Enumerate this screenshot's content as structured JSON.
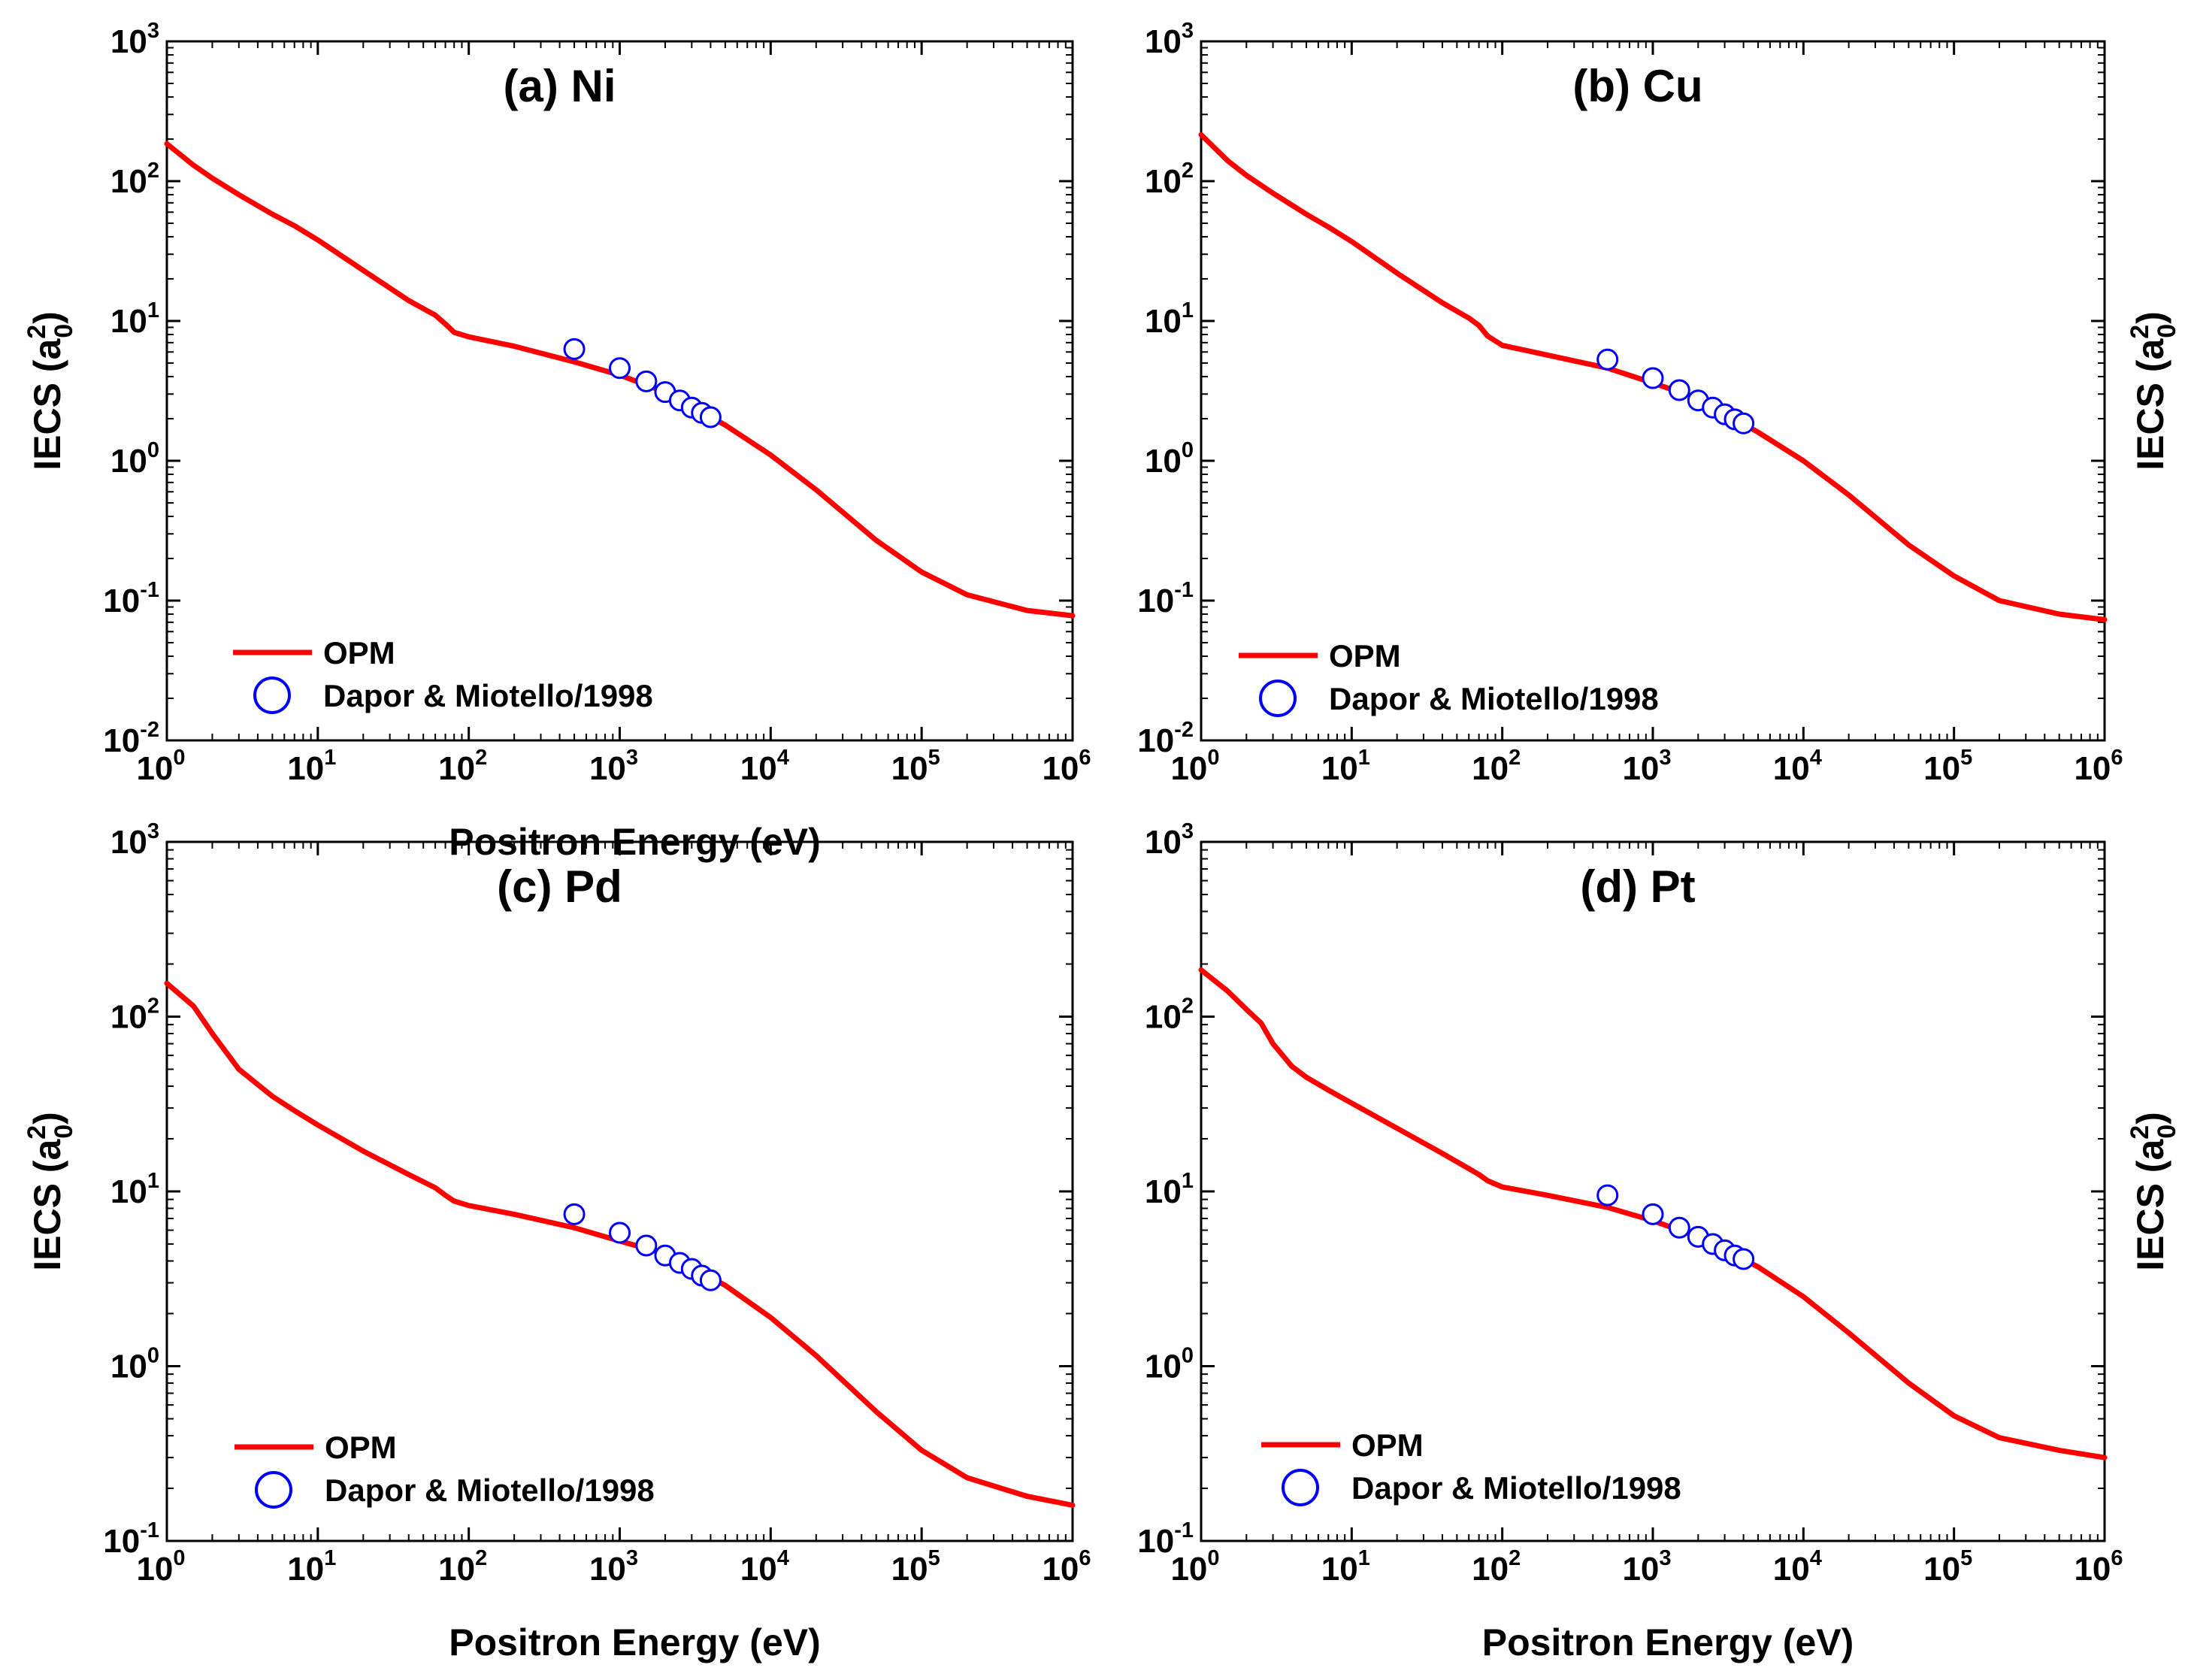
{
  "colors": {
    "line": "#ff0000",
    "marker": "#0000ff",
    "axis": "#000000"
  },
  "chart_data": [
    {
      "type": "line",
      "panel": "a",
      "title": "(a) Ni",
      "xlabel": "Positron Energy (eV)",
      "ylabel": {
        "main": "IECS (a",
        "sup": "2",
        "sub": "0",
        "close": ")"
      },
      "xscale": "log",
      "yscale": "log",
      "xlim": [
        1,
        1000000
      ],
      "ylim": [
        0.01,
        1000
      ],
      "xticks": [
        {
          "base": "10",
          "exp": "0"
        },
        {
          "base": "10",
          "exp": "1"
        },
        {
          "base": "10",
          "exp": "2"
        },
        {
          "base": "10",
          "exp": "3"
        },
        {
          "base": "10",
          "exp": "4"
        },
        {
          "base": "10",
          "exp": "5"
        },
        {
          "base": "10",
          "exp": "6"
        }
      ],
      "yticks": [
        {
          "base": "10",
          "exp": "-2"
        },
        {
          "base": "10",
          "exp": "-1"
        },
        {
          "base": "10",
          "exp": "0"
        },
        {
          "base": "10",
          "exp": "1"
        },
        {
          "base": "10",
          "exp": "2"
        },
        {
          "base": "10",
          "exp": "3"
        }
      ],
      "legend_position": "bottom-left",
      "series": [
        {
          "name": "OPM",
          "kind": "line",
          "x": [
            1,
            1.5,
            2,
            3,
            5,
            7,
            10,
            20,
            40,
            60,
            70,
            80,
            100,
            200,
            500,
            1000,
            2000,
            5000,
            10000,
            20000,
            50000,
            100000,
            200000,
            500000,
            1000000
          ],
          "y": [
            185,
            130,
            105,
            80,
            58,
            48,
            38,
            23,
            14,
            11,
            9.5,
            8.3,
            7.7,
            6.6,
            5.1,
            4.1,
            3.1,
            1.8,
            1.1,
            0.62,
            0.27,
            0.16,
            0.11,
            0.085,
            0.078
          ]
        },
        {
          "name": "Dapor & Miotello/1998",
          "kind": "scatter",
          "x": [
            500,
            1000,
            1500,
            2000,
            2500,
            3000,
            3500,
            4000
          ],
          "y": [
            6.3,
            4.6,
            3.7,
            3.1,
            2.7,
            2.4,
            2.2,
            2.05
          ]
        }
      ]
    },
    {
      "type": "line",
      "panel": "b",
      "title": "(b) Cu",
      "xlabel": "",
      "ylabel": {
        "main": "IECS (a",
        "sup": "2",
        "sub": "0",
        "close": ")"
      },
      "xscale": "log",
      "yscale": "log",
      "xlim": [
        1,
        1000000
      ],
      "ylim": [
        0.01,
        1000
      ],
      "xticks": [
        {
          "base": "10",
          "exp": "0"
        },
        {
          "base": "10",
          "exp": "1"
        },
        {
          "base": "10",
          "exp": "2"
        },
        {
          "base": "10",
          "exp": "3"
        },
        {
          "base": "10",
          "exp": "4"
        },
        {
          "base": "10",
          "exp": "5"
        },
        {
          "base": "10",
          "exp": "6"
        }
      ],
      "yticks": [
        {
          "base": "10",
          "exp": "-2"
        },
        {
          "base": "10",
          "exp": "-1"
        },
        {
          "base": "10",
          "exp": "0"
        },
        {
          "base": "10",
          "exp": "1"
        },
        {
          "base": "10",
          "exp": "2"
        },
        {
          "base": "10",
          "exp": "3"
        }
      ],
      "legend_position": "bottom-left",
      "series": [
        {
          "name": "OPM",
          "kind": "line",
          "x": [
            1,
            1.5,
            2,
            3,
            5,
            7,
            10,
            20,
            40,
            60,
            70,
            80,
            100,
            200,
            500,
            1000,
            2000,
            5000,
            10000,
            20000,
            50000,
            100000,
            200000,
            500000,
            1000000
          ],
          "y": [
            215,
            140,
            110,
            82,
            58,
            47,
            37,
            22,
            13.5,
            10.5,
            9.3,
            7.8,
            6.7,
            5.7,
            4.6,
            3.6,
            2.8,
            1.6,
            1.0,
            0.57,
            0.25,
            0.15,
            0.1,
            0.08,
            0.073
          ]
        },
        {
          "name": "Dapor & Miotello/1998",
          "kind": "scatter",
          "x": [
            500,
            1000,
            1500,
            2000,
            2500,
            3000,
            3500,
            4000
          ],
          "y": [
            5.3,
            3.9,
            3.2,
            2.7,
            2.4,
            2.15,
            1.98,
            1.85
          ]
        }
      ]
    },
    {
      "type": "line",
      "panel": "c",
      "title": "(c) Pd",
      "xlabel": "Positron Energy (eV)",
      "ylabel": {
        "main": "IECS (a",
        "sup": "2",
        "sub": "0",
        "close": ")"
      },
      "xscale": "log",
      "yscale": "log",
      "xlim": [
        1,
        1000000
      ],
      "ylim": [
        0.1,
        1000
      ],
      "xticks": [
        {
          "base": "10",
          "exp": "0"
        },
        {
          "base": "10",
          "exp": "1"
        },
        {
          "base": "10",
          "exp": "2"
        },
        {
          "base": "10",
          "exp": "3"
        },
        {
          "base": "10",
          "exp": "4"
        },
        {
          "base": "10",
          "exp": "5"
        },
        {
          "base": "10",
          "exp": "6"
        }
      ],
      "yticks": [
        {
          "base": "10",
          "exp": "-1"
        },
        {
          "base": "10",
          "exp": "0"
        },
        {
          "base": "10",
          "exp": "1"
        },
        {
          "base": "10",
          "exp": "2"
        },
        {
          "base": "10",
          "exp": "3"
        }
      ],
      "legend_position": "bottom-left",
      "series": [
        {
          "name": "OPM",
          "kind": "line",
          "x": [
            1,
            1.5,
            2,
            3,
            5,
            7,
            10,
            20,
            40,
            60,
            70,
            80,
            100,
            200,
            500,
            1000,
            2000,
            5000,
            10000,
            20000,
            50000,
            100000,
            200000,
            500000,
            1000000
          ],
          "y": [
            155,
            115,
            80,
            50,
            35,
            29,
            24,
            17,
            12.5,
            10.5,
            9.5,
            8.8,
            8.3,
            7.4,
            6.2,
            5.2,
            4.4,
            2.9,
            1.9,
            1.15,
            0.55,
            0.33,
            0.23,
            0.18,
            0.16
          ]
        },
        {
          "name": "Dapor & Miotello/1998",
          "kind": "scatter",
          "x": [
            500,
            1000,
            1500,
            2000,
            2500,
            3000,
            3500,
            4000
          ],
          "y": [
            7.4,
            5.8,
            4.9,
            4.3,
            3.9,
            3.6,
            3.3,
            3.1
          ]
        }
      ]
    },
    {
      "type": "line",
      "panel": "d",
      "title": "(d) Pt",
      "xlabel": "Positron Energy (eV)",
      "ylabel": {
        "main": "IECS (a",
        "sup": "2",
        "sub": "0",
        "close": ")"
      },
      "xscale": "log",
      "yscale": "log",
      "xlim": [
        1,
        1000000
      ],
      "ylim": [
        0.1,
        1000
      ],
      "xticks": [
        {
          "base": "10",
          "exp": "0"
        },
        {
          "base": "10",
          "exp": "1"
        },
        {
          "base": "10",
          "exp": "2"
        },
        {
          "base": "10",
          "exp": "3"
        },
        {
          "base": "10",
          "exp": "4"
        },
        {
          "base": "10",
          "exp": "5"
        },
        {
          "base": "10",
          "exp": "6"
        }
      ],
      "yticks": [
        {
          "base": "10",
          "exp": "-1"
        },
        {
          "base": "10",
          "exp": "0"
        },
        {
          "base": "10",
          "exp": "1"
        },
        {
          "base": "10",
          "exp": "2"
        },
        {
          "base": "10",
          "exp": "3"
        }
      ],
      "legend_position": "bottom-left",
      "series": [
        {
          "name": "OPM",
          "kind": "line",
          "x": [
            1,
            1.5,
            2,
            2.5,
            3,
            4,
            5,
            7,
            10,
            20,
            40,
            60,
            70,
            80,
            100,
            200,
            500,
            1000,
            2000,
            5000,
            10000,
            20000,
            50000,
            100000,
            200000,
            500000,
            1000000
          ],
          "y": [
            185,
            140,
            110,
            92,
            70,
            52,
            45,
            38,
            32,
            23,
            16.5,
            13.5,
            12.5,
            11.5,
            10.6,
            9.5,
            8.1,
            6.8,
            5.5,
            3.7,
            2.5,
            1.55,
            0.8,
            0.52,
            0.39,
            0.33,
            0.3
          ]
        },
        {
          "name": "Dapor & Miotello/1998",
          "kind": "scatter",
          "x": [
            500,
            1000,
            1500,
            2000,
            2500,
            3000,
            3500,
            4000
          ],
          "y": [
            9.5,
            7.4,
            6.2,
            5.5,
            5.0,
            4.6,
            4.3,
            4.1
          ]
        }
      ]
    }
  ]
}
